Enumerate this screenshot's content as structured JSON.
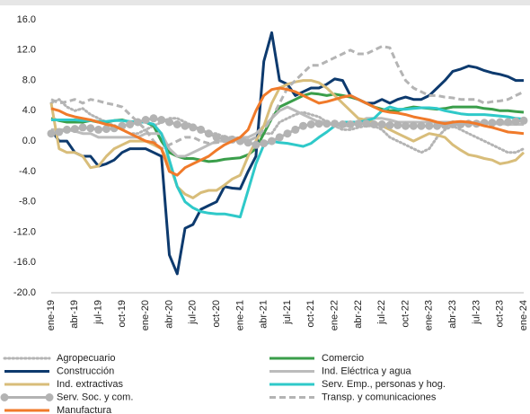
{
  "chart_data": {
    "type": "line",
    "categories": [
      "ene-19",
      null,
      null,
      "abr-19",
      null,
      null,
      "jul-19",
      null,
      null,
      "oct-19",
      null,
      null,
      "ene-20",
      null,
      null,
      "abr-20",
      null,
      null,
      "jul-20",
      null,
      null,
      "oct-20",
      null,
      null,
      "ene-21",
      null,
      null,
      "abr-21",
      null,
      null,
      "jul-21",
      null,
      null,
      "oct-21",
      null,
      null,
      "ene-22",
      null,
      null,
      "abr-22",
      null,
      null,
      "jul-22",
      null,
      null,
      "oct-22",
      null,
      null,
      "ene-23",
      null,
      null,
      "abr-23",
      null,
      null,
      "jul-23",
      null,
      null,
      "oct-23",
      null,
      null,
      "ene-24"
    ],
    "ylim": [
      -20,
      16
    ],
    "yticks": [
      {
        "value": -20,
        "label": "-20.0"
      },
      {
        "value": -16,
        "label": "-16.0"
      },
      {
        "value": -12,
        "label": "-12.0"
      },
      {
        "value": -8,
        "label": "-8.0"
      },
      {
        "value": -4,
        "label": "-4.0"
      },
      {
        "value": 0,
        "label": "0.0"
      },
      {
        "value": 4,
        "label": "4.0"
      },
      {
        "value": 8,
        "label": "8.0"
      },
      {
        "value": 12,
        "label": "12.0"
      },
      {
        "value": 16,
        "label": "16.0"
      }
    ],
    "grid": false,
    "series": [
      {
        "name": "Agropecuario",
        "color": "#b4b4b4",
        "style": "dotted",
        "values": [
          5,
          5.5,
          4.5,
          4,
          4.3,
          3.5,
          3,
          2.5,
          2,
          1.5,
          1,
          1,
          1.5,
          2,
          2.5,
          3,
          3,
          2.5,
          2,
          1.5,
          1,
          1,
          0.5,
          0.5,
          0,
          0,
          0.5,
          1,
          1,
          2.5,
          3,
          3.5,
          3.8,
          3.5,
          3.2,
          2.5,
          2,
          1.5,
          1.5,
          1.8,
          2,
          2,
          1.5,
          0.5,
          0,
          -0.5,
          -1,
          -1.5,
          -1,
          0.5,
          1.5,
          2,
          1.5,
          1,
          0.5,
          0,
          -0.5,
          -1,
          -1.5,
          -1.5,
          -1
        ]
      },
      {
        "name": "Comercio",
        "color": "#3a9e4a",
        "style": "solid",
        "values": [
          3,
          2.7,
          2.5,
          2.5,
          2.5,
          2.7,
          2.5,
          2.5,
          2.7,
          2.8,
          2.5,
          2.5,
          2.5,
          2,
          0,
          -1.5,
          -2,
          -2.3,
          -2.3,
          -2.5,
          -2.7,
          -2.6,
          -2.4,
          -2.3,
          -2.2,
          -1.8,
          -1,
          1,
          3,
          4.5,
          5,
          5.5,
          6,
          6.3,
          6.2,
          6,
          6.2,
          6,
          5.8,
          5.5,
          5,
          4.5,
          4.2,
          4,
          4,
          4.3,
          4.5,
          4.4,
          4.3,
          4.2,
          4.3,
          4.5,
          4.5,
          4.5,
          4.5,
          4.3,
          4.2,
          4,
          4,
          3.9,
          3.8
        ]
      },
      {
        "name": "Construcción",
        "color": "#0d3a6e",
        "style": "solid",
        "values": [
          1.5,
          0,
          0,
          -1.5,
          -2,
          -2,
          -3.3,
          -3,
          -2.5,
          -1.5,
          -1,
          -1,
          -1,
          -1.5,
          -2,
          -15,
          -17.5,
          -11.5,
          -11,
          -9,
          -8.5,
          -8,
          -6,
          -6.2,
          -6.3,
          -4,
          -2,
          10.5,
          14.3,
          8,
          7.5,
          6,
          6.5,
          7,
          7,
          7.5,
          8.2,
          8,
          6,
          5.5,
          5,
          5,
          5.5,
          5,
          5.5,
          5.8,
          5.5,
          5.5,
          6,
          7,
          8,
          9.2,
          9.5,
          9.9,
          9.7,
          9.3,
          9,
          8.8,
          8.5,
          8,
          8
        ]
      },
      {
        "name": "Ind. Eléctrica y agua",
        "color": "#bcbcbc",
        "style": "solid",
        "values": [
          1.5,
          1.5,
          1.5,
          1.3,
          1,
          1,
          0.5,
          0.5,
          0.5,
          0.5,
          0.5,
          0.5,
          1,
          1,
          1,
          -1,
          -2,
          -2,
          -1.5,
          -1,
          -0.5,
          0,
          0,
          0,
          0.5,
          0.5,
          1,
          2,
          3,
          4,
          4.5,
          4,
          3.5,
          3,
          2.5,
          2.5,
          2,
          2,
          2,
          2.5,
          3,
          3,
          3,
          2.8,
          2.5,
          2.5,
          2.5,
          2.5,
          2.5,
          2.5,
          2.5,
          2.5,
          2.5,
          2.5,
          2.4,
          2.4,
          2.3,
          2.3,
          2.2,
          2.2,
          2.2
        ]
      },
      {
        "name": "Ind. extractivas",
        "color": "#d8bd7a",
        "style": "solid",
        "values": [
          5,
          -1,
          -1.5,
          -1.5,
          -2,
          -3.5,
          -3.3,
          -2,
          -1,
          -0.5,
          0,
          0,
          0,
          -0.5,
          -1,
          -3,
          -6,
          -7,
          -7.5,
          -6.8,
          -6.5,
          -6.5,
          -5.8,
          -5,
          -4.5,
          -2,
          0,
          2,
          5,
          7,
          7.5,
          7.8,
          8,
          8,
          7.7,
          7,
          6,
          5,
          4,
          3,
          2.8,
          2.5,
          2,
          1.5,
          1,
          0.5,
          0,
          0.5,
          1,
          0.8,
          0.5,
          -0.5,
          -1.2,
          -1.8,
          -2,
          -2.3,
          -2.5,
          -3,
          -2.8,
          -2.5,
          -1.5
        ]
      },
      {
        "name": "Serv. Emp., personas y hog.",
        "color": "#2fc9c9",
        "style": "solid",
        "values": [
          2.8,
          2.8,
          2.8,
          2.8,
          2.7,
          2.7,
          2.6,
          2.6,
          2.7,
          2.7,
          2.6,
          2.5,
          2.5,
          2.2,
          1,
          -2.5,
          -6,
          -8,
          -8.8,
          -9.3,
          -9.5,
          -9.6,
          -9.6,
          -9.8,
          -10,
          -6.5,
          -3,
          -0.5,
          0,
          -0.2,
          -0.3,
          -0.5,
          -0.7,
          -0.3,
          0.5,
          1.2,
          2,
          2.5,
          2.5,
          2.5,
          2.7,
          3,
          4,
          4.5,
          4.2,
          4.2,
          4.3,
          4.4,
          4.4,
          4.3,
          4,
          3.8,
          3.6,
          3.5,
          3.5,
          3.5,
          3.4,
          3.3,
          3.2,
          3,
          2.9
        ]
      },
      {
        "name": "Serv. Soc. y com.",
        "color": "#b3b3b3",
        "style": "solid",
        "marker": "circle",
        "values": [
          1,
          1.2,
          1.5,
          1.6,
          1.8,
          1.7,
          1.5,
          1.6,
          1.7,
          2,
          2.2,
          2.5,
          2.8,
          3,
          2.8,
          2.5,
          2.2,
          2,
          1.8,
          1.5,
          1,
          0.5,
          0.3,
          0.2,
          0,
          -0.2,
          -0.5,
          -0.3,
          0,
          0.5,
          1,
          1.5,
          2,
          2.2,
          2.3,
          2.3,
          2.3,
          2.2,
          2.2,
          2.3,
          2.3,
          2.2,
          2.2,
          2.1,
          2.1,
          2,
          2,
          2,
          2,
          2,
          2.1,
          2.2,
          2.2,
          2.3,
          2.3,
          2.4,
          2.4,
          2.5,
          2.5,
          2.6,
          2.7
        ]
      },
      {
        "name": "Transp. y comunicaciones",
        "color": "#b4b4b4",
        "style": "dashed",
        "values": [
          5.5,
          5,
          5.2,
          5.5,
          5,
          5.5,
          5.3,
          5,
          4.8,
          4.5,
          3.5,
          2.5,
          1.5,
          0,
          -1,
          -0.5,
          0,
          0.5,
          0.5,
          0,
          -0.3,
          -0.2,
          0,
          0.3,
          0.5,
          0,
          0.5,
          1.5,
          3,
          5,
          7,
          8,
          9,
          10,
          10,
          10.5,
          11,
          11.5,
          12,
          11.5,
          11.5,
          12,
          12.5,
          12.3,
          10,
          8,
          7,
          6.5,
          6,
          6,
          5.8,
          5.7,
          5.5,
          5.5,
          5.5,
          5,
          5.2,
          5.3,
          5.5,
          6,
          6.5
        ]
      },
      {
        "name": "Manufactura",
        "color": "#f07a2a",
        "style": "solid",
        "values": [
          4.3,
          4,
          3.5,
          3.2,
          3,
          2.8,
          2.5,
          2.2,
          2,
          1.5,
          1,
          0.5,
          0,
          -0.2,
          -1,
          -4,
          -4.5,
          -3.5,
          -3,
          -2.5,
          -2,
          -1.2,
          -0.5,
          0,
          0.5,
          1.5,
          4,
          6,
          6.8,
          7,
          6.8,
          6.5,
          6,
          5.5,
          5,
          5.2,
          5.5,
          5.8,
          6,
          5.5,
          5,
          4.5,
          4,
          3.8,
          3.7,
          3.5,
          3.2,
          3,
          2.8,
          2.5,
          2.3,
          2.5,
          2.6,
          2.5,
          2.3,
          2,
          1.8,
          1.5,
          1.2,
          1.1,
          1
        ]
      }
    ]
  }
}
